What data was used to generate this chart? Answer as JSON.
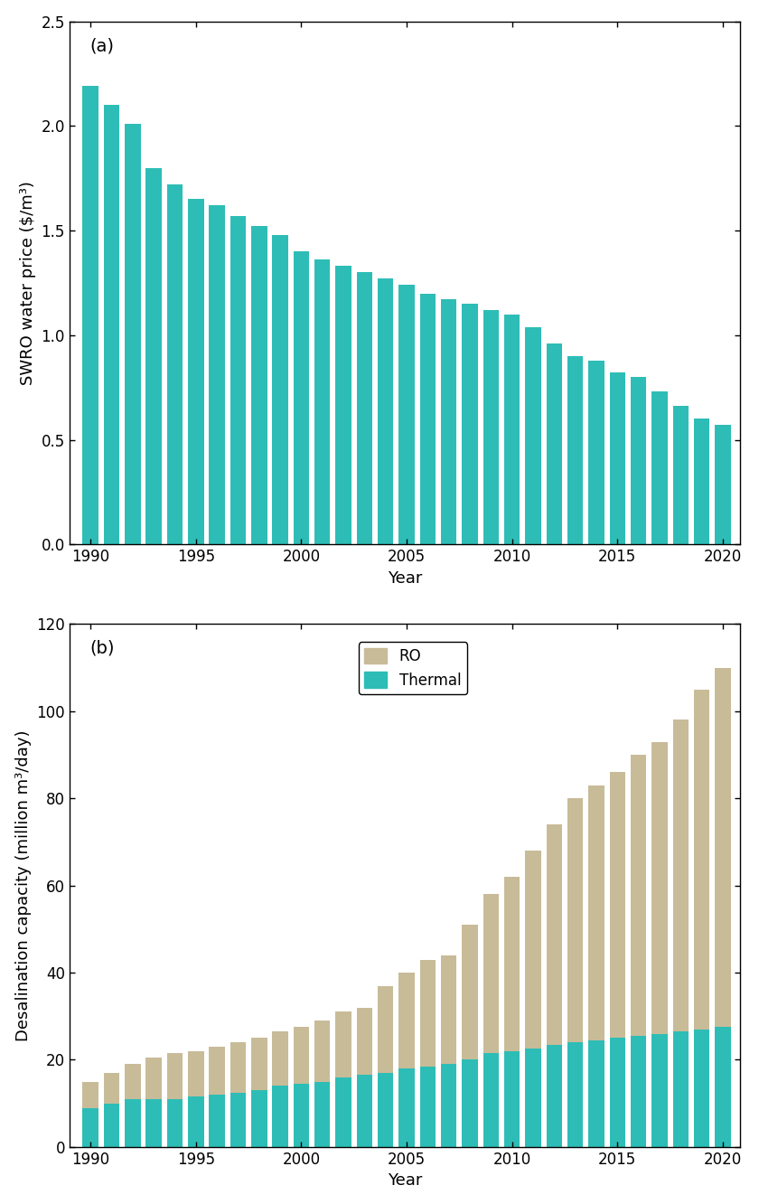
{
  "years": [
    1990,
    1991,
    1992,
    1993,
    1994,
    1995,
    1996,
    1997,
    1998,
    1999,
    2000,
    2001,
    2002,
    2003,
    2004,
    2005,
    2006,
    2007,
    2008,
    2009,
    2010,
    2011,
    2012,
    2013,
    2014,
    2015,
    2016,
    2017,
    2018,
    2019,
    2020
  ],
  "swro_price": [
    2.19,
    2.1,
    2.01,
    1.8,
    1.72,
    1.65,
    1.62,
    1.57,
    1.52,
    1.48,
    1.4,
    1.36,
    1.33,
    1.3,
    1.27,
    1.24,
    1.2,
    1.17,
    1.15,
    1.12,
    1.1,
    1.04,
    0.96,
    0.9,
    0.88,
    0.82,
    0.8,
    0.73,
    0.66,
    0.6,
    0.57
  ],
  "desalination_total": [
    15,
    17,
    19,
    20.5,
    21.5,
    22,
    23,
    24,
    25,
    26.5,
    27.5,
    29,
    31,
    32,
    37,
    40,
    43,
    44,
    51,
    58,
    62,
    68,
    74,
    80,
    83,
    86,
    90,
    93,
    98,
    105,
    110
  ],
  "desalination_thermal": [
    9,
    10,
    11,
    11,
    11,
    11.5,
    12,
    12.5,
    13,
    14,
    14.5,
    15,
    16,
    16.5,
    17,
    18,
    18.5,
    19,
    20,
    21.5,
    22,
    22.5,
    23.5,
    24,
    24.5,
    25,
    25.5,
    26,
    26.5,
    27,
    27.5
  ],
  "bar_color_a": "#2dbdb6",
  "bar_color_thermal": "#2dbdb6",
  "bar_color_ro": "#c8bb98",
  "ylabel_a": "SWRO water price ($/m³)",
  "ylabel_b": "Desalination capacity (million m³/day)",
  "xlabel": "Year",
  "label_a": "(a)",
  "label_b": "(b)",
  "legend_ro": "RO",
  "legend_thermal": "Thermal",
  "ylim_a": [
    0,
    2.5
  ],
  "ylim_b": [
    0,
    120
  ],
  "yticks_a": [
    0.0,
    0.5,
    1.0,
    1.5,
    2.0,
    2.5
  ],
  "yticks_b": [
    0,
    20,
    40,
    60,
    80,
    100,
    120
  ],
  "xticks": [
    1990,
    1995,
    2000,
    2005,
    2010,
    2015,
    2020
  ]
}
